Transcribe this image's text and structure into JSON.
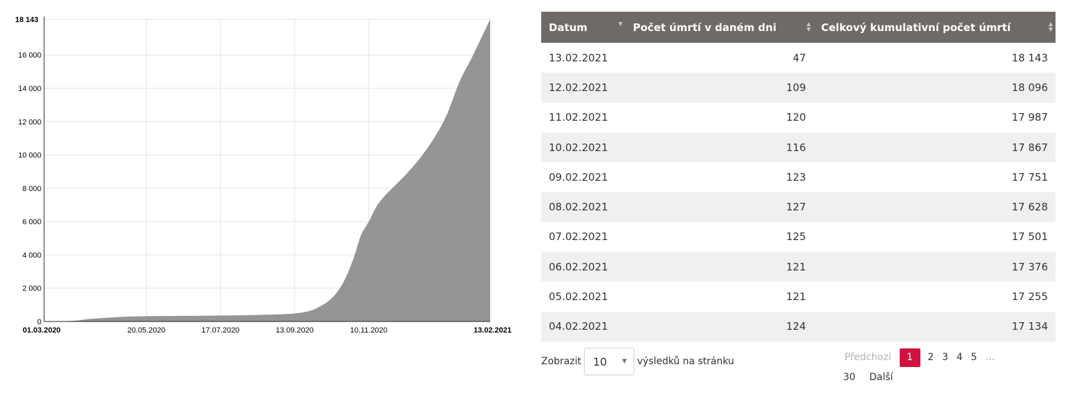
{
  "chart_data": {
    "type": "area",
    "x_type": "date",
    "x_tick_labels": [
      "01.03.2020",
      "20.05.2020",
      "17.07.2020",
      "13.09.2020",
      "10.11.2020",
      "13.02.2021"
    ],
    "y_tick_labels": [
      "0",
      "2 000",
      "4 000",
      "6 000",
      "8 000",
      "10 000",
      "12 000",
      "14 000",
      "16 000",
      "18 143"
    ],
    "y_ticks": [
      0,
      2000,
      4000,
      6000,
      8000,
      10000,
      12000,
      14000,
      16000,
      18143
    ],
    "ylim": [
      0,
      18143
    ],
    "xlim": [
      "2020-03-01",
      "2021-02-13"
    ],
    "grid": true,
    "color": "#8c8c8c",
    "series": [
      {
        "x": [
          "2020-03-01",
          "2020-03-22",
          "2020-04-05",
          "2020-04-20",
          "2020-05-05",
          "2020-05-20",
          "2020-06-10",
          "2020-07-17",
          "2020-08-15",
          "2020-09-01",
          "2020-09-13",
          "2020-09-25",
          "2020-10-05",
          "2020-10-12",
          "2020-10-18",
          "2020-10-24",
          "2020-10-30",
          "2020-11-04",
          "2020-11-10",
          "2020-11-16",
          "2020-11-22",
          "2020-12-01",
          "2020-12-10",
          "2020-12-20",
          "2020-12-31",
          "2021-01-10",
          "2021-01-20",
          "2021-01-30",
          "2021-02-13"
        ],
        "y": [
          0,
          30,
          150,
          230,
          290,
          317,
          330,
          355,
          395,
          430,
          480,
          640,
          1000,
          1400,
          1950,
          2800,
          4000,
          5200,
          6000,
          6900,
          7500,
          8200,
          8900,
          9800,
          11000,
          12400,
          14400,
          15900,
          18143
        ]
      }
    ]
  },
  "table": {
    "headers": [
      "Datum",
      "Počet úmrtí v daném dni",
      "Celkový kumulativní počet úmrtí"
    ],
    "rows": [
      [
        "13.02.2021",
        "47",
        "18 143"
      ],
      [
        "12.02.2021",
        "109",
        "18 096"
      ],
      [
        "11.02.2021",
        "120",
        "17 987"
      ],
      [
        "10.02.2021",
        "116",
        "17 867"
      ],
      [
        "09.02.2021",
        "123",
        "17 751"
      ],
      [
        "08.02.2021",
        "127",
        "17 628"
      ],
      [
        "07.02.2021",
        "125",
        "17 501"
      ],
      [
        "06.02.2021",
        "121",
        "17 376"
      ],
      [
        "05.02.2021",
        "121",
        "17 255"
      ],
      [
        "04.02.2021",
        "124",
        "17 134"
      ]
    ]
  },
  "footer": {
    "show_label": "Zobrazit",
    "page_size": "10",
    "per_page_label": "výsledků na stránku",
    "prev_label": "Předchozí",
    "pages": [
      "1",
      "2",
      "3",
      "4",
      "5"
    ],
    "ellipsis": "…",
    "last_page": "30",
    "next_label": "Další",
    "current_page": "1"
  },
  "colors": {
    "header_bg": "#6f6a67",
    "active_page": "#d1123f",
    "row_alt": "#f1f0ef"
  }
}
